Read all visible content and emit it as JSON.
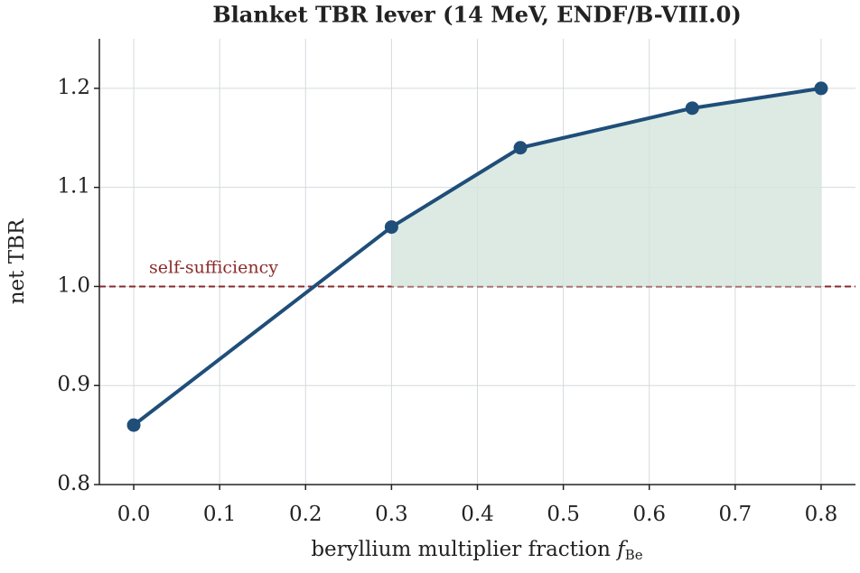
{
  "chart_data": {
    "type": "line",
    "title": "Blanket TBR lever (14 MeV, ENDF/B-VIII.0)",
    "x_label": "beryllium multiplier fraction",
    "x_label_symbol": "f",
    "x_label_subscript": "Be",
    "y_label": "net TBR",
    "x": [
      0,
      0.3,
      0.45,
      0.65,
      0.8
    ],
    "series": [
      {
        "name": "net TBR",
        "color": "#1f4e79",
        "values": [
          0.86,
          1.06,
          1.14,
          1.18,
          1.2
        ]
      }
    ],
    "reference_line": {
      "value": 1,
      "label": "self-sufficiency",
      "color": "#8b2a2a"
    },
    "fill_color": "#d3e5dc",
    "xlim": [
      -0.04,
      0.84
    ],
    "xticks": [
      {
        "value": 0,
        "label": "0.0"
      },
      0.1,
      0.2,
      0.3,
      0.4,
      0.5,
      0.6,
      0.7,
      0.8
    ],
    "ylim": [
      0.8,
      1.25
    ],
    "yticks": [
      0.8,
      0.9,
      {
        "value": 1,
        "label": "1.0"
      },
      1.1,
      1.2
    ],
    "grid": true
  }
}
